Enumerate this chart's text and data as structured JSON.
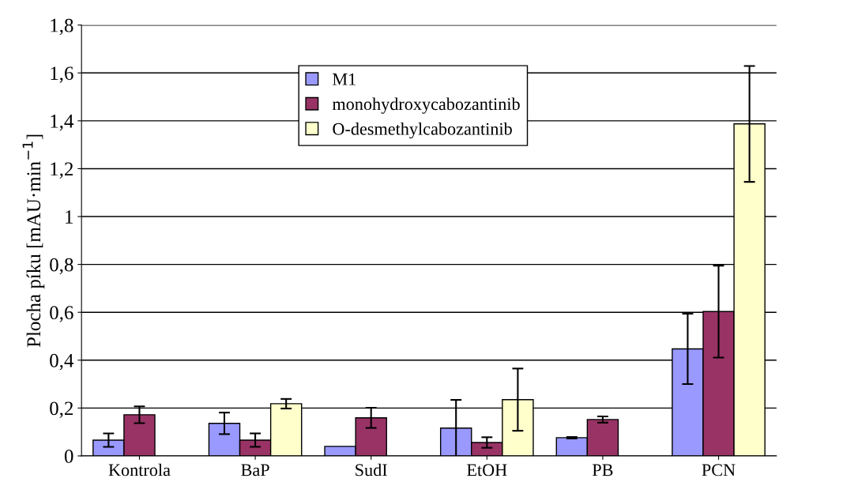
{
  "chart_data": {
    "type": "bar",
    "ylabel": "Plocha píku [mAU·min$^{−1}$]",
    "categories": [
      "Kontrola",
      "BaP",
      "SudI",
      "EtOH",
      "PB",
      "PCN"
    ],
    "series": [
      {
        "name": "M1",
        "color": "#9999ff",
        "values": [
          0.066,
          0.136,
          0.04,
          0.116,
          0.076,
          0.447
        ],
        "errors": [
          0.028,
          0.045,
          null,
          0.118,
          0.003,
          0.147
        ]
      },
      {
        "name": "monohydroxycabozantinib",
        "color": "#993366",
        "values": [
          0.172,
          0.066,
          0.159,
          0.056,
          0.152,
          0.603
        ],
        "errors": [
          0.035,
          0.028,
          0.042,
          0.022,
          0.013,
          0.192
        ]
      },
      {
        "name": "O-desmethylcabozantinib",
        "color": "#ffffcc",
        "values": [
          null,
          0.218,
          null,
          0.235,
          null,
          1.387
        ],
        "errors": [
          null,
          0.02,
          null,
          0.13,
          null,
          0.242
        ]
      }
    ],
    "ylim": [
      0,
      1.8
    ],
    "yticks": [
      0,
      {
        "value": 0.2,
        "label": "0,2"
      },
      {
        "value": 0.4,
        "label": "0,4"
      },
      {
        "value": 0.6,
        "label": "0,6"
      },
      {
        "value": 0.8,
        "label": "0,8"
      },
      1,
      {
        "value": 1.2,
        "label": "1,2"
      },
      {
        "value": 1.4,
        "label": "1,4"
      },
      {
        "value": 1.6,
        "label": "1,6"
      },
      {
        "value": 1.8,
        "label": "1,8"
      }
    ],
    "grid": "y",
    "legend": "top"
  }
}
